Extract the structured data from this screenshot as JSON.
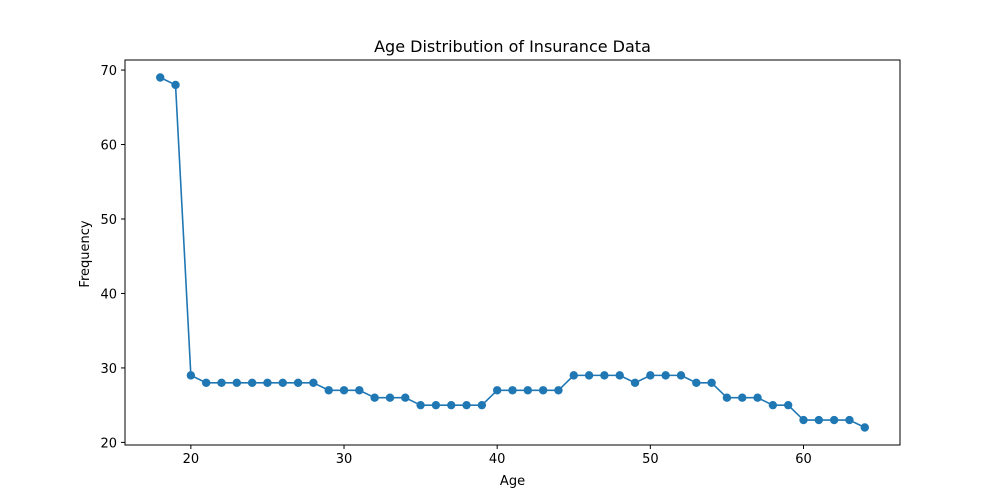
{
  "chart_data": {
    "type": "line",
    "title": "Age Distribution of Insurance Data",
    "xlabel": "Age",
    "ylabel": "Frequency",
    "xlim": [
      15.7,
      66.3
    ],
    "ylim": [
      19.65,
      71.35
    ],
    "x_ticks": [
      20,
      30,
      40,
      50,
      60
    ],
    "y_ticks": [
      20,
      30,
      40,
      50,
      60,
      70
    ],
    "grid": false,
    "series": [
      {
        "color": "#1f77b4",
        "marker": "circle",
        "x": [
          18,
          19,
          20,
          21,
          22,
          23,
          24,
          25,
          26,
          27,
          28,
          29,
          30,
          31,
          32,
          33,
          34,
          35,
          36,
          37,
          38,
          39,
          40,
          41,
          42,
          43,
          44,
          45,
          46,
          47,
          48,
          49,
          50,
          51,
          52,
          53,
          54,
          55,
          56,
          57,
          58,
          59,
          60,
          61,
          62,
          63,
          64
        ],
        "y": [
          69,
          68,
          29,
          28,
          28,
          28,
          28,
          28,
          28,
          28,
          28,
          27,
          27,
          27,
          26,
          26,
          26,
          25,
          25,
          25,
          25,
          25,
          27,
          27,
          27,
          27,
          27,
          29,
          29,
          29,
          29,
          28,
          29,
          29,
          29,
          28,
          28,
          26,
          26,
          26,
          25,
          25,
          23,
          23,
          23,
          23,
          22
        ]
      }
    ]
  }
}
